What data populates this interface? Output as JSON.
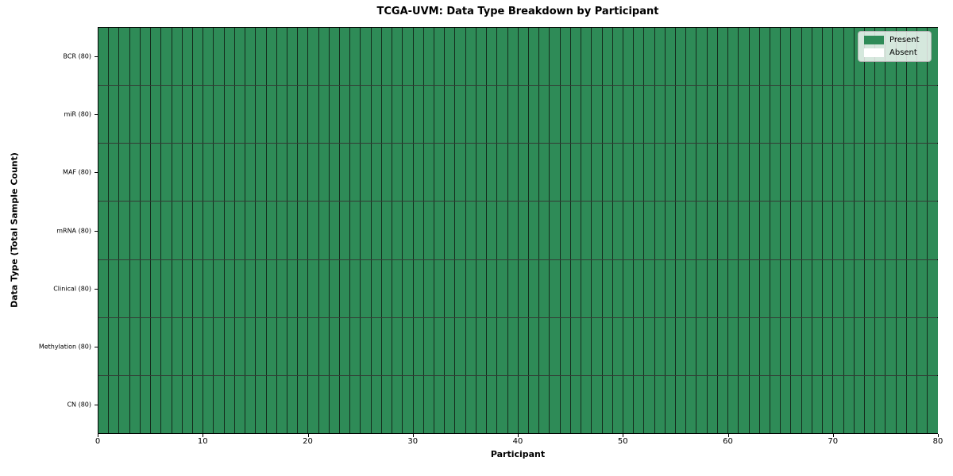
{
  "figure": {
    "background": "#ffffff"
  },
  "chart_data": {
    "type": "heatmap",
    "title": "TCGA-UVM: Data Type Breakdown by Participant",
    "xlabel": "Participant",
    "ylabel": "Data Type (Total Sample Count)",
    "x_ticks": [
      "0",
      "10",
      "20",
      "30",
      "40",
      "50",
      "60",
      "70",
      "80"
    ],
    "x_range": [
      0,
      80
    ],
    "participants": 80,
    "rows": [
      {
        "label": "BCR (80)",
        "present_count": 80,
        "absent_count": 0
      },
      {
        "label": "miR (80)",
        "present_count": 80,
        "absent_count": 0
      },
      {
        "label": "MAF (80)",
        "present_count": 80,
        "absent_count": 0
      },
      {
        "label": "mRNA (80)",
        "present_count": 80,
        "absent_count": 0
      },
      {
        "label": "Clinical (80)",
        "present_count": 80,
        "absent_count": 0
      },
      {
        "label": "Methylation (80)",
        "present_count": 80,
        "absent_count": 0
      },
      {
        "label": "CN (80)",
        "present_count": 80,
        "absent_count": 0
      }
    ],
    "legend": {
      "position": "upper right",
      "entries": [
        {
          "label": "Present",
          "color": "#2e8b57"
        },
        {
          "label": "Absent",
          "color": "#ffffff"
        }
      ]
    },
    "colors": {
      "present": "#2e8b57",
      "absent": "#ffffff",
      "grid_line": "#0f1912",
      "axis": "#000000"
    },
    "grid": true
  }
}
